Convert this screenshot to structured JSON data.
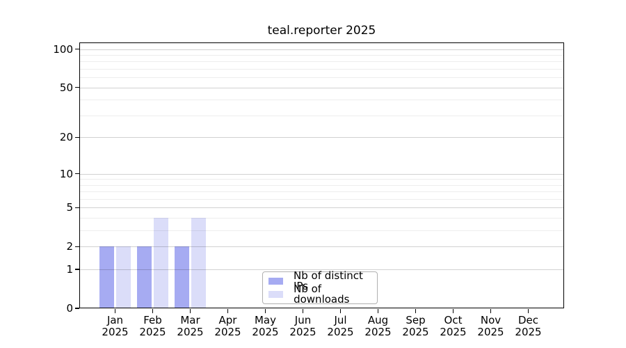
{
  "figure": {
    "background": "#ffffff"
  },
  "chart_data": {
    "type": "bar",
    "title": "teal.reporter 2025",
    "x_axis": {
      "months": [
        "Jan",
        "Feb",
        "Mar",
        "Apr",
        "May",
        "Jun",
        "Jul",
        "Aug",
        "Sep",
        "Oct",
        "Nov",
        "Dec"
      ],
      "year": "2025"
    },
    "y_axis": {
      "scale": "log1p",
      "tick_labels": [
        100,
        50,
        20,
        10,
        5,
        2,
        1,
        0
      ],
      "minor_gridlines": [
        3,
        4,
        6,
        7,
        8,
        9,
        30,
        40,
        60,
        70,
        80,
        90
      ],
      "range": [
        0,
        113
      ],
      "grid": true
    },
    "series": [
      {
        "name": "Nb of distinct IPs",
        "color": "#a6abf2",
        "values": [
          2,
          2,
          2,
          0,
          0,
          0,
          0,
          0,
          0,
          0,
          0,
          0
        ]
      },
      {
        "name": "Nb of downloads",
        "color": "#dbddf9",
        "values": [
          2,
          4,
          4,
          0,
          0,
          0,
          0,
          0,
          0,
          0,
          0,
          0
        ]
      }
    ],
    "legend": {
      "position": "bottom-center",
      "border_color": "#b0b0b0"
    }
  },
  "colors": {
    "major_grid": "rgba(0,0,0,0.18)",
    "minor_grid": "rgba(0,0,0,0.07)",
    "axis": "#000000",
    "text": "#000000"
  }
}
